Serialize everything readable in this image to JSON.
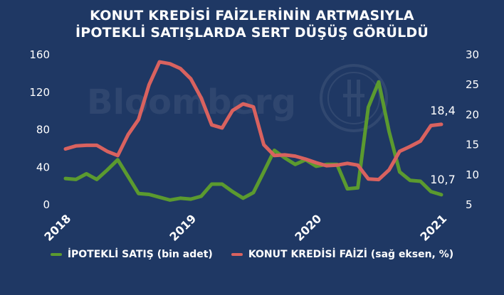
{
  "header": {
    "title_line1": "KONUT KREDİSİ FAİZLERİNİN ARTMASIYLA",
    "title_line2": "İPOTEKLİ SATIŞLARDA SERT DÜŞÜŞ GÖRÜLDÜ"
  },
  "watermark": {
    "text": "Bloomberg"
  },
  "legend": {
    "series1": "İPOTEKLİ SATIŞ (bin adet)",
    "series2": "KONUT KREDİSİ FAİZİ (sağ eksen, %)"
  },
  "colors": {
    "background": "#1f3864",
    "green": "#5b9a2f",
    "red": "#d9625f"
  },
  "chart_data": {
    "type": "line",
    "x_ticks": [
      "2018",
      "2019",
      "2020",
      "2021"
    ],
    "left_axis": {
      "ticks": [
        "0",
        "40",
        "80",
        "120",
        "160"
      ],
      "range": [
        0,
        160
      ]
    },
    "right_axis": {
      "ticks": [
        "5",
        "10",
        "15",
        "20",
        "25",
        "30"
      ],
      "range": [
        5,
        30
      ]
    },
    "x_range": [
      2018.0,
      2021.0
    ],
    "grid": false,
    "legend_position": "bottom",
    "series": [
      {
        "name": "İPOTEKLİ SATIŞ (bin adet)",
        "axis": "left",
        "color": "#5b9a2f",
        "x": [
          2018.0,
          2018.083,
          2018.167,
          2018.25,
          2018.333,
          2018.417,
          2018.5,
          2018.583,
          2018.667,
          2018.75,
          2018.833,
          2018.917,
          2019.0,
          2019.083,
          2019.167,
          2019.25,
          2019.333,
          2019.417,
          2019.5,
          2019.583,
          2019.667,
          2019.75,
          2019.833,
          2019.917,
          2020.0,
          2020.083,
          2020.167,
          2020.25,
          2020.333,
          2020.417,
          2020.5,
          2020.583,
          2020.667,
          2020.75,
          2020.833,
          2020.917,
          2021.0
        ],
        "values": [
          28,
          27,
          33,
          27,
          37,
          48,
          30,
          12,
          11,
          8,
          5,
          7,
          6,
          9,
          22,
          22,
          14,
          7,
          13,
          35,
          58,
          50,
          43,
          48,
          41,
          43,
          43,
          17,
          18,
          104,
          131,
          78,
          35,
          26,
          25,
          14,
          10.7
        ]
      },
      {
        "name": "KONUT KREDİSİ FAİZİ (sağ eksen, %)",
        "axis": "right",
        "color": "#d9625f",
        "x": [
          2018.0,
          2018.083,
          2018.167,
          2018.25,
          2018.333,
          2018.417,
          2018.5,
          2018.583,
          2018.667,
          2018.75,
          2018.833,
          2018.917,
          2019.0,
          2019.083,
          2019.167,
          2019.25,
          2019.333,
          2019.417,
          2019.5,
          2019.583,
          2019.667,
          2019.75,
          2019.833,
          2019.917,
          2020.0,
          2020.083,
          2020.167,
          2020.25,
          2020.333,
          2020.417,
          2020.5,
          2020.583,
          2020.667,
          2020.75,
          2020.833,
          2020.917,
          2021.0
        ],
        "values": [
          14.3,
          14.8,
          14.9,
          14.9,
          13.9,
          13.2,
          16.7,
          19.2,
          25.0,
          28.8,
          28.5,
          27.7,
          26.0,
          22.8,
          18.3,
          17.8,
          20.7,
          21.8,
          21.3,
          15.0,
          13.2,
          13.3,
          13.1,
          12.6,
          12.0,
          11.5,
          11.6,
          11.9,
          11.6,
          9.3,
          9.2,
          10.8,
          13.9,
          14.7,
          15.6,
          18.2,
          18.4
        ]
      }
    ],
    "annotations": [
      {
        "text": "18,4",
        "series": "KONUT KREDİSİ FAİZİ (sağ eksen, %)"
      },
      {
        "text": "10,7",
        "series": "İPOTEKLİ SATIŞ (bin adet)"
      }
    ]
  }
}
